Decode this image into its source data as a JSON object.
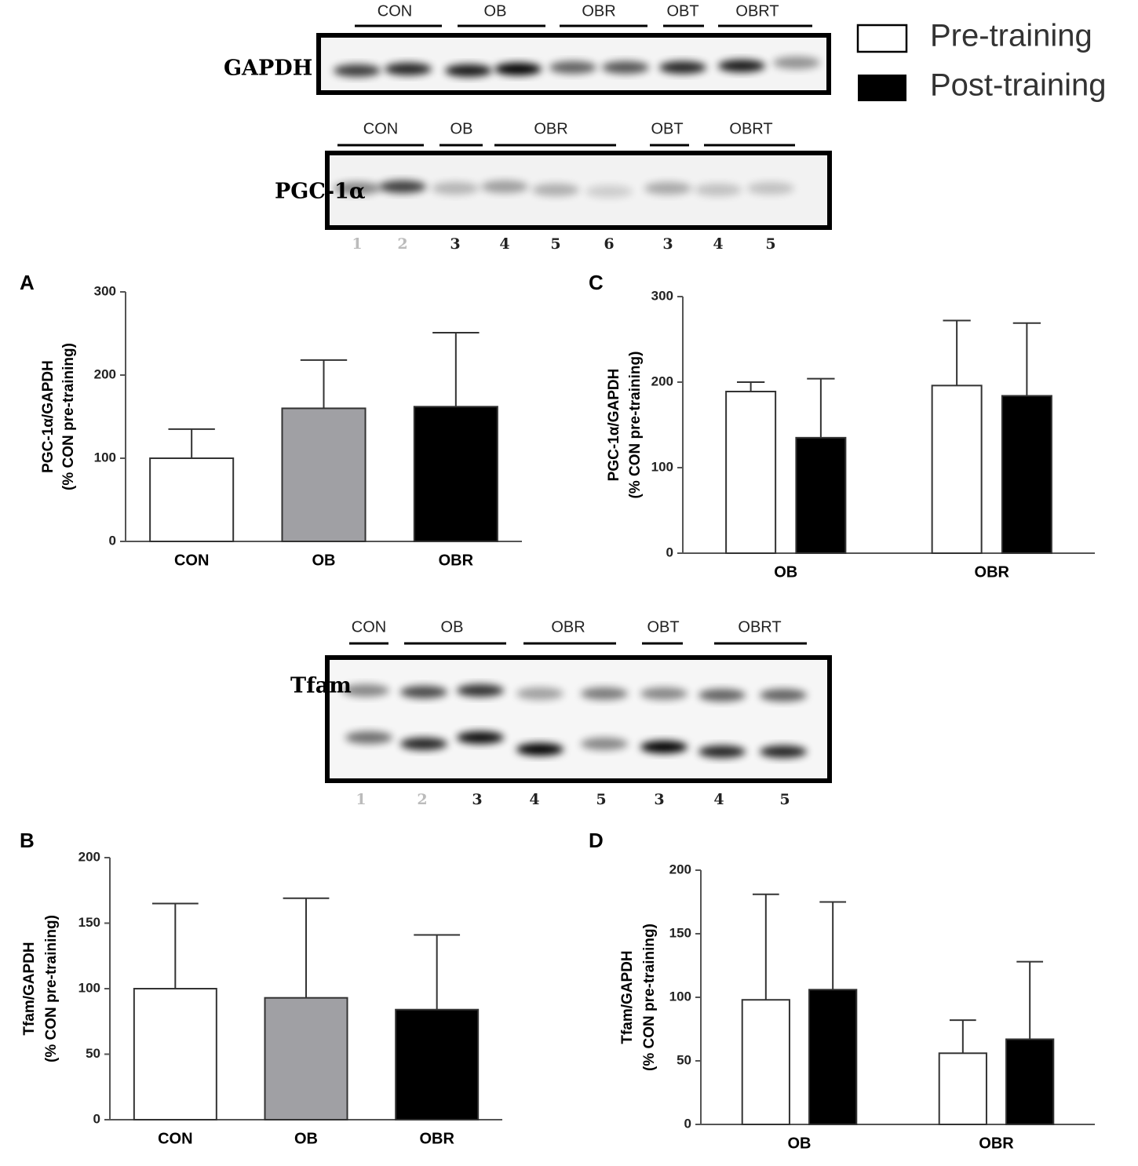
{
  "blots": [
    {
      "protein": "GAPDH",
      "groups": [
        "CON",
        "OB",
        "OBR",
        "OBT",
        "OBRT"
      ]
    },
    {
      "protein": "PGC-1α",
      "groups": [
        "CON",
        "OB",
        "OBR",
        "OBT",
        "OBRT"
      ],
      "lanes": [
        "1",
        "2",
        "3",
        "4",
        "5",
        "6",
        "3",
        "4",
        "5"
      ]
    },
    {
      "protein": "Tfam",
      "groups": [
        "CON",
        "OB",
        "OBR",
        "OBT",
        "OBRT"
      ],
      "lanes": [
        "1",
        "2",
        "3",
        "4",
        "5",
        "3",
        "4",
        "5"
      ]
    }
  ],
  "chart_data": [
    {
      "type": "bar",
      "panel": "A",
      "ylabel": [
        "PGC-1α/GAPDH",
        "(% CON pre-training)"
      ],
      "categories": [
        "CON",
        "OB",
        "OBR"
      ],
      "values": [
        100,
        160,
        162
      ],
      "errors": [
        35,
        58,
        89
      ],
      "colors": [
        "#ffffff",
        "#a0a0a4",
        "#000000"
      ],
      "ylim": [
        0,
        300
      ],
      "yticks": [
        0,
        100,
        200,
        300
      ]
    },
    {
      "type": "grouped_bar",
      "panel": "C",
      "ylabel": [
        "PGC-1α/GAPDH",
        "(% CON pre-training)"
      ],
      "categories": [
        "OB",
        "OBR"
      ],
      "series": [
        {
          "name": "Pre-training",
          "color": "#ffffff",
          "values": [
            189,
            196
          ],
          "errors": [
            11,
            76
          ]
        },
        {
          "name": "Post-training",
          "color": "#000000",
          "values": [
            135,
            184
          ],
          "errors": [
            69,
            85
          ]
        }
      ],
      "ylim": [
        0,
        300
      ],
      "yticks": [
        0,
        100,
        200,
        300
      ]
    },
    {
      "type": "bar",
      "panel": "B",
      "ylabel": [
        "Tfam/GAPDH",
        "(% CON pre-training)"
      ],
      "categories": [
        "CON",
        "OB",
        "OBR"
      ],
      "values": [
        100,
        93,
        84
      ],
      "errors": [
        65,
        76,
        57
      ],
      "colors": [
        "#ffffff",
        "#a0a0a4",
        "#000000"
      ],
      "ylim": [
        0,
        200
      ],
      "yticks": [
        0,
        50,
        100,
        150,
        200
      ]
    },
    {
      "type": "grouped_bar",
      "panel": "D",
      "ylabel": [
        "Tfam/GAPDH",
        "(% CON pre-training)"
      ],
      "categories": [
        "OB",
        "OBR"
      ],
      "series": [
        {
          "color": "#ffffff",
          "values": [
            98,
            56
          ],
          "errors": [
            83,
            26
          ]
        },
        {
          "color": "#000000",
          "values": [
            106,
            67
          ],
          "errors": [
            69,
            61
          ]
        }
      ],
      "ylim": [
        0,
        200
      ],
      "yticks": [
        0,
        50,
        100,
        150,
        200
      ]
    }
  ]
}
